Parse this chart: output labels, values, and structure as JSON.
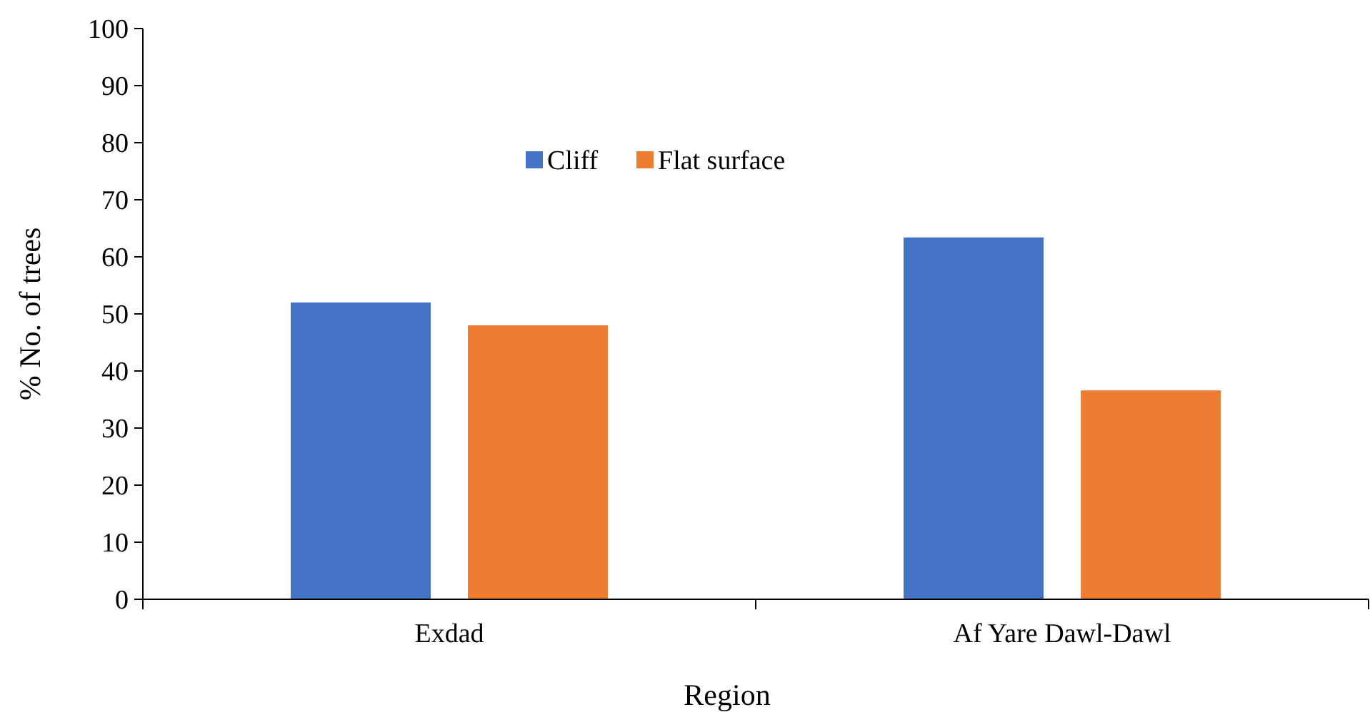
{
  "chart_data": {
    "type": "bar",
    "xlabel": "Region",
    "ylabel": "% No. of trees",
    "categories": [
      "Exdad",
      "Af Yare Dawl-Dawl"
    ],
    "series": [
      {
        "name": "Cliff",
        "color": "#4472c4",
        "values": [
          52,
          63.4
        ]
      },
      {
        "name": "Flat surface",
        "color": "#ed7d31",
        "values": [
          48,
          36.6
        ]
      }
    ],
    "ylim": [
      0,
      100
    ],
    "yticks": [
      0,
      10,
      20,
      30,
      40,
      50,
      60,
      70,
      80,
      90,
      100
    ],
    "legend": "top"
  }
}
